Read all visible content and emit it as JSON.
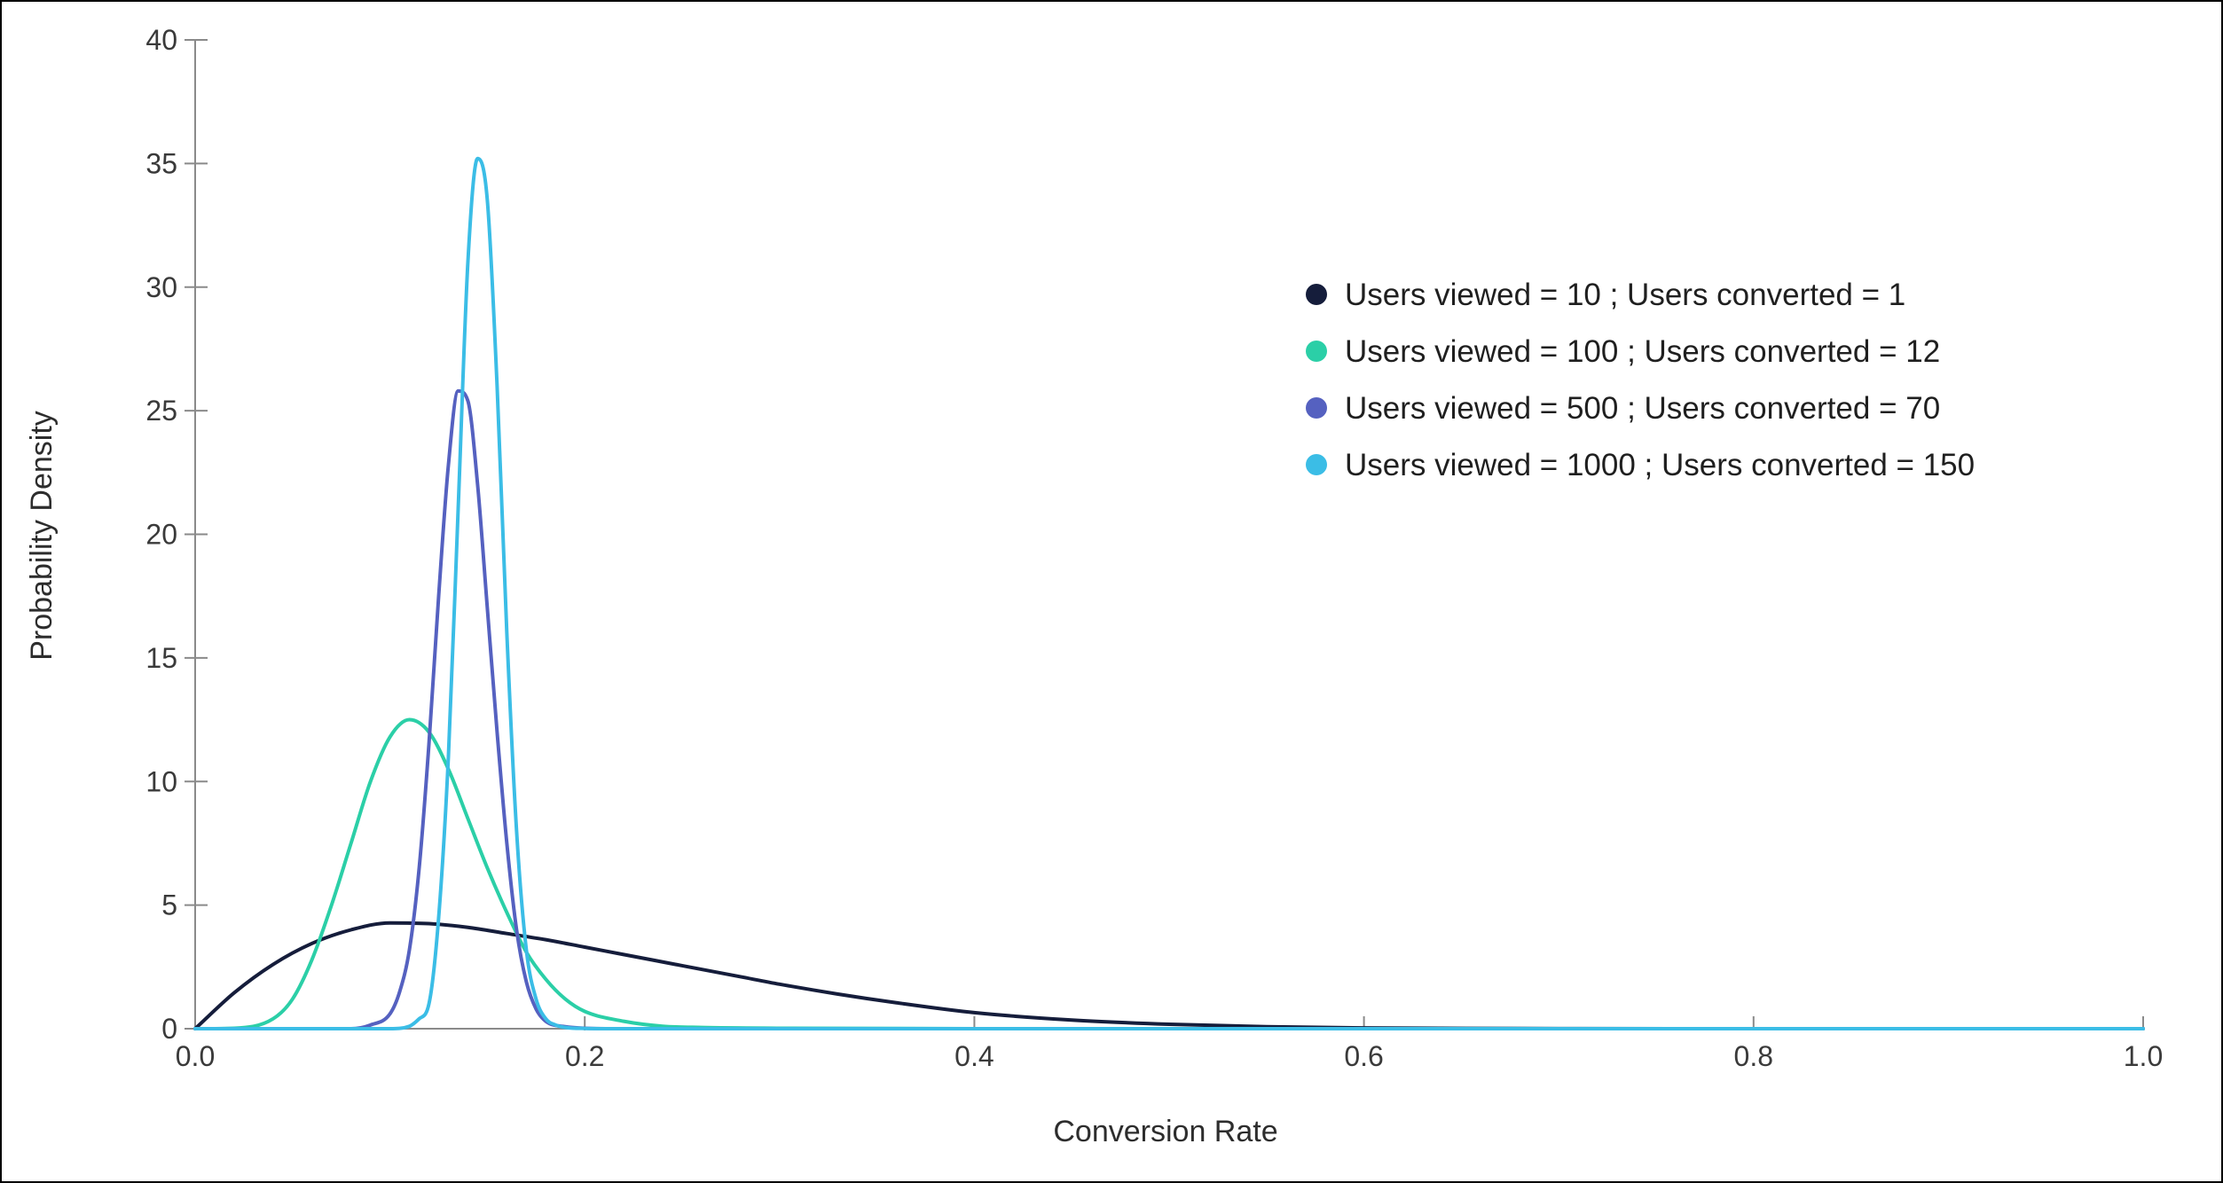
{
  "chart_data": {
    "type": "line",
    "title": "",
    "xlabel": "Conversion Rate",
    "ylabel": "Probability Density",
    "xlim": [
      0,
      1
    ],
    "ylim": [
      0,
      40
    ],
    "x_ticks": [
      0.0,
      0.2,
      0.4,
      0.6,
      0.8,
      1.0
    ],
    "x_tick_labels": [
      "0.0",
      "0.2",
      "0.4",
      "0.6",
      "0.8",
      "1.0"
    ],
    "y_ticks": [
      0,
      5,
      10,
      15,
      20,
      25,
      30,
      35,
      40
    ],
    "y_tick_labels": [
      "0",
      "5",
      "10",
      "15",
      "20",
      "25",
      "30",
      "35",
      "40"
    ],
    "grid": false,
    "legend_position": "top-right",
    "series": [
      {
        "name": "Users viewed = 10 ; Users converted = 1",
        "color": "#151d3b",
        "x": [
          0.0,
          0.02,
          0.04,
          0.06,
          0.08,
          0.1,
          0.12,
          0.14,
          0.16,
          0.18,
          0.2,
          0.22,
          0.25,
          0.28,
          0.3,
          0.33,
          0.36,
          0.4,
          0.45,
          0.5,
          0.55,
          0.6,
          0.7,
          0.8,
          0.9,
          1.0
        ],
        "y": [
          0.0,
          1.45,
          2.6,
          3.45,
          4.0,
          4.28,
          4.25,
          4.1,
          3.85,
          3.6,
          3.3,
          3.0,
          2.55,
          2.1,
          1.8,
          1.4,
          1.05,
          0.65,
          0.35,
          0.18,
          0.08,
          0.03,
          0.005,
          0.0,
          0.0,
          0.0
        ]
      },
      {
        "name": "Users viewed = 100 ; Users converted = 12",
        "color": "#2bcfa7",
        "x": [
          0.0,
          0.02,
          0.04,
          0.05,
          0.06,
          0.07,
          0.08,
          0.09,
          0.1,
          0.11,
          0.12,
          0.13,
          0.14,
          0.15,
          0.16,
          0.17,
          0.18,
          0.19,
          0.2,
          0.22,
          0.24,
          0.26,
          0.3,
          0.4,
          1.0
        ],
        "y": [
          0.0,
          0.02,
          0.4,
          1.2,
          2.8,
          5.0,
          7.5,
          10.0,
          11.8,
          12.5,
          12.0,
          10.5,
          8.5,
          6.5,
          4.7,
          3.1,
          2.0,
          1.2,
          0.7,
          0.3,
          0.1,
          0.05,
          0.02,
          0.0,
          0.0
        ]
      },
      {
        "name": "Users viewed = 500 ; Users converted = 70",
        "color": "#5561c0",
        "x": [
          0.0,
          0.08,
          0.09,
          0.1,
          0.105,
          0.11,
          0.115,
          0.12,
          0.125,
          0.13,
          0.135,
          0.14,
          0.145,
          0.15,
          0.155,
          0.16,
          0.165,
          0.17,
          0.175,
          0.18,
          0.19,
          0.2,
          0.22,
          0.25,
          1.0
        ],
        "y": [
          0.0,
          0.0,
          0.15,
          0.6,
          1.5,
          3.2,
          6.5,
          11.5,
          17.5,
          22.8,
          25.8,
          25.4,
          22.0,
          17.0,
          12.0,
          7.5,
          4.0,
          1.9,
          0.8,
          0.3,
          0.08,
          0.02,
          0.0,
          0.0,
          0.0
        ]
      },
      {
        "name": "Users viewed = 1000 ; Users converted = 150",
        "color": "#3bbde6",
        "x": [
          0.0,
          0.1,
          0.11,
          0.115,
          0.12,
          0.125,
          0.13,
          0.135,
          0.14,
          0.145,
          0.15,
          0.155,
          0.16,
          0.165,
          0.17,
          0.175,
          0.18,
          0.185,
          0.19,
          0.2,
          0.22,
          1.0
        ],
        "y": [
          0.0,
          0.0,
          0.1,
          0.4,
          1.0,
          4.5,
          11.0,
          21.0,
          31.0,
          35.2,
          33.5,
          26.0,
          16.0,
          8.0,
          3.2,
          1.2,
          0.4,
          0.15,
          0.05,
          0.01,
          0.0,
          0.0
        ]
      }
    ]
  }
}
